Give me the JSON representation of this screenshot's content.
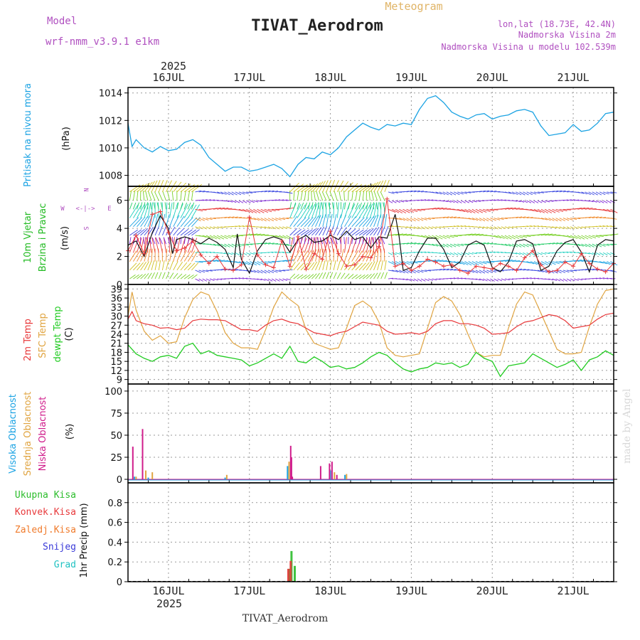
{
  "header": {
    "model_label": "Model",
    "model_name": "wrf-nmm_v3.9.1  e1km",
    "title": "TIVAT_Aerodrom",
    "subtitle": "Meteogram",
    "lonlat": "lon,lat (18.73E, 42.4N)",
    "elevation": "Nadmorska Visina 2m",
    "model_elevation": "Nadmorska Visina u modelu 102.539m",
    "year": "2025",
    "watermark": "made by Angel",
    "footer": "TIVAT_Aerodrom"
  },
  "colors": {
    "pressure": "#1ca3e3",
    "temp2m": "#e8393b",
    "sfc_temp": "#e0a440",
    "dewpoint": "#22cc22",
    "high_cloud": "#1ca3e3",
    "mid_cloud": "#e0a440",
    "low_cloud": "#d01c8b",
    "total_rain": "#2bbd2b",
    "conv_rain": "#e8393b",
    "frz_rain": "#f07a2a",
    "snow": "#3a3ad8",
    "graupel": "#20c2c2",
    "wind_label": "#22bb22",
    "compass": "#b050c0"
  },
  "chart_data": [
    {
      "type": "line",
      "panel": "pressure",
      "ylabel_left": "Pritisak na nivou mora",
      "ylabel_unit": "(hPa)",
      "ylim": [
        1007.2,
        1014.4
      ],
      "yticks": [
        1008,
        1010,
        1012,
        1014
      ],
      "x_range_days": [
        15.5,
        21.5
      ],
      "x_ticks": [
        {
          "day": 16,
          "label": "16JUL"
        },
        {
          "day": 17,
          "label": "17JUL"
        },
        {
          "day": 18,
          "label": "18JUL"
        },
        {
          "day": 19,
          "label": "19JUL"
        },
        {
          "day": 20,
          "label": "20JUL"
        },
        {
          "day": 21,
          "label": "21JUL"
        }
      ],
      "series": [
        {
          "name": "Pritisak na nivou mora",
          "x_days": [
            15.5,
            15.55,
            15.6,
            15.7,
            15.8,
            15.9,
            16.0,
            16.1,
            16.2,
            16.3,
            16.4,
            16.5,
            16.6,
            16.7,
            16.8,
            16.9,
            17.0,
            17.1,
            17.2,
            17.3,
            17.4,
            17.5,
            17.6,
            17.7,
            17.8,
            17.9,
            18.0,
            18.1,
            18.2,
            18.3,
            18.4,
            18.5,
            18.6,
            18.7,
            18.8,
            18.9,
            19.0,
            19.1,
            19.2,
            19.3,
            19.4,
            19.5,
            19.6,
            19.7,
            19.8,
            19.9,
            20.0,
            20.1,
            20.2,
            20.3,
            20.4,
            20.5,
            20.6,
            20.7,
            20.8,
            20.9,
            21.0,
            21.1,
            21.2,
            21.3,
            21.4,
            21.5
          ],
          "values": [
            1011.8,
            1010.1,
            1010.6,
            1010.0,
            1009.7,
            1010.1,
            1009.8,
            1009.9,
            1010.4,
            1010.6,
            1010.2,
            1009.3,
            1008.8,
            1008.3,
            1008.6,
            1008.6,
            1008.3,
            1008.4,
            1008.6,
            1008.8,
            1008.5,
            1007.9,
            1008.8,
            1009.3,
            1009.2,
            1009.7,
            1009.5,
            1010.0,
            1010.8,
            1011.3,
            1011.8,
            1011.5,
            1011.3,
            1011.7,
            1011.6,
            1011.8,
            1011.7,
            1012.8,
            1013.6,
            1013.8,
            1013.3,
            1012.6,
            1012.3,
            1012.1,
            1012.4,
            1012.5,
            1012.1,
            1012.3,
            1012.4,
            1012.7,
            1012.8,
            1012.6,
            1011.6,
            1010.9,
            1011.0,
            1011.1,
            1011.7,
            1011.2,
            1011.3,
            1011.8,
            1012.5,
            1012.6
          ]
        }
      ]
    },
    {
      "type": "line",
      "panel": "wind",
      "ylabel_left": "10m Vjetar Brzina i Pravac",
      "ylabel_unit": "(m/s)",
      "compass": [
        "N",
        "W",
        "E",
        "S"
      ],
      "ylim": [
        0,
        7
      ],
      "yticks": [
        0,
        2,
        4,
        6
      ],
      "series": [
        {
          "name": "wind speed",
          "x_days": [
            15.5,
            15.6,
            15.7,
            15.8,
            15.9,
            16.0,
            16.05,
            16.1,
            16.2,
            16.3,
            16.4,
            16.5,
            16.6,
            16.7,
            16.8,
            16.85,
            16.9,
            17.0,
            17.1,
            17.2,
            17.3,
            17.4,
            17.5,
            17.6,
            17.7,
            17.8,
            17.9,
            18.0,
            18.1,
            18.2,
            18.3,
            18.4,
            18.5,
            18.6,
            18.7,
            18.8,
            18.85,
            18.9,
            19.0,
            19.1,
            19.2,
            19.3,
            19.4,
            19.5,
            19.6,
            19.7,
            19.8,
            19.9,
            20.0,
            20.1,
            20.2,
            20.3,
            20.4,
            20.5,
            20.6,
            20.7,
            20.8,
            20.9,
            21.0,
            21.1,
            21.2,
            21.3,
            21.4,
            21.5
          ],
          "values": [
            2.8,
            3.1,
            2.0,
            3.7,
            4.9,
            4.0,
            2.2,
            3.2,
            3.4,
            3.2,
            2.9,
            3.3,
            3.0,
            2.5,
            1.2,
            3.6,
            1.8,
            0.8,
            2.4,
            3.2,
            3.4,
            3.2,
            2.3,
            3.2,
            3.5,
            3.0,
            3.1,
            3.5,
            3.2,
            3.8,
            3.2,
            3.4,
            2.6,
            3.4,
            3.3,
            5.0,
            3.4,
            1.0,
            1.2,
            2.4,
            3.3,
            3.3,
            2.5,
            1.2,
            1.6,
            2.8,
            3.1,
            2.8,
            1.2,
            0.9,
            1.6,
            3.1,
            3.2,
            2.9,
            1.0,
            1.3,
            2.4,
            3.0,
            3.2,
            2.3,
            0.9,
            2.8,
            3.2,
            3.1
          ]
        },
        {
          "name": "gust markers",
          "x_days": [
            15.5,
            15.6,
            15.7,
            15.8,
            15.9,
            16.0,
            16.1,
            16.2,
            16.3,
            16.4,
            16.5,
            16.6,
            16.7,
            16.8,
            16.9,
            17.0,
            17.1,
            17.2,
            17.3,
            17.4,
            17.5,
            17.6,
            17.7,
            17.8,
            17.9,
            18.0,
            18.1,
            18.2,
            18.3,
            18.4,
            18.5,
            18.6,
            18.7,
            18.8,
            18.9,
            19.0,
            19.1,
            19.2,
            19.3,
            19.4,
            19.5,
            19.6,
            19.7,
            19.8,
            19.9,
            20.0,
            20.1,
            20.2,
            20.3,
            20.4,
            20.5,
            20.6,
            20.7,
            20.8,
            20.9,
            21.0,
            21.1,
            21.2,
            21.3,
            21.4,
            21.5
          ],
          "values": [
            2.4,
            3.5,
            2.2,
            5.0,
            5.2,
            3.7,
            2.4,
            2.6,
            3.1,
            2.1,
            1.5,
            2.0,
            1.1,
            1.0,
            1.4,
            4.8,
            2.1,
            1.4,
            1.2,
            3.1,
            1.3,
            3.4,
            1.1,
            2.2,
            1.8,
            3.8,
            2.2,
            1.3,
            1.4,
            2.0,
            1.9,
            2.7,
            6.1,
            1.3,
            1.5,
            1.0,
            1.3,
            1.8,
            1.6,
            1.3,
            1.4,
            1.0,
            0.8,
            1.3,
            1.2,
            1.1,
            1.5,
            1.3,
            1.0,
            1.9,
            2.4,
            1.4,
            0.9,
            1.0,
            1.6,
            1.3,
            2.2,
            1.5,
            1.1,
            0.9,
            1.5
          ]
        }
      ]
    },
    {
      "type": "line",
      "panel": "temperature",
      "ylabel_left": [
        "2m Temp",
        "SFC Temp",
        "dewpt Temp"
      ],
      "ylabel_unit": "(C)",
      "ylim": [
        7.5,
        40.5
      ],
      "yticks": [
        9,
        12,
        15,
        18,
        21,
        24,
        27,
        30,
        33,
        36,
        39
      ],
      "series": [
        {
          "name": "2m Temp",
          "x_days": [
            15.5,
            15.55,
            15.6,
            15.7,
            15.8,
            15.9,
            16.0,
            16.1,
            16.2,
            16.3,
            16.4,
            16.5,
            16.6,
            16.7,
            16.8,
            16.9,
            17.0,
            17.1,
            17.2,
            17.3,
            17.4,
            17.5,
            17.6,
            17.7,
            17.8,
            17.9,
            18.0,
            18.1,
            18.2,
            18.3,
            18.4,
            18.5,
            18.6,
            18.7,
            18.8,
            18.9,
            19.0,
            19.1,
            19.2,
            19.3,
            19.4,
            19.5,
            19.6,
            19.7,
            19.8,
            19.9,
            20.0,
            20.1,
            20.2,
            20.3,
            20.4,
            20.5,
            20.6,
            20.7,
            20.8,
            20.9,
            21.0,
            21.1,
            21.2,
            21.3,
            21.4,
            21.5
          ],
          "values": [
            29.0,
            31.5,
            28.5,
            27.5,
            27.0,
            26.0,
            26.2,
            25.5,
            26.0,
            28.5,
            29.0,
            28.8,
            28.8,
            28.5,
            27.0,
            25.5,
            25.5,
            25.0,
            27.0,
            28.5,
            29.0,
            28.0,
            27.5,
            26.0,
            24.5,
            24.0,
            23.5,
            24.5,
            25.0,
            26.5,
            28.0,
            27.5,
            27.0,
            25.0,
            24.0,
            24.2,
            24.5,
            24.0,
            25.0,
            27.5,
            28.5,
            28.5,
            27.5,
            27.5,
            27.0,
            26.0,
            24.0,
            24.2,
            24.5,
            26.5,
            28.0,
            28.5,
            29.5,
            30.5,
            30.0,
            28.5,
            26.0,
            26.5,
            27.0,
            29.0,
            30.5,
            31.0
          ]
        },
        {
          "name": "SFC Temp",
          "x_days": [
            15.5,
            15.55,
            15.6,
            15.7,
            15.8,
            15.9,
            16.0,
            16.1,
            16.2,
            16.3,
            16.4,
            16.5,
            16.6,
            16.7,
            16.8,
            16.9,
            17.0,
            17.1,
            17.2,
            17.3,
            17.4,
            17.5,
            17.6,
            17.7,
            17.8,
            17.9,
            18.0,
            18.1,
            18.2,
            18.3,
            18.4,
            18.5,
            18.6,
            18.7,
            18.8,
            18.9,
            19.0,
            19.1,
            19.2,
            19.3,
            19.4,
            19.5,
            19.6,
            19.7,
            19.8,
            19.9,
            20.0,
            20.1,
            20.2,
            20.3,
            20.4,
            20.5,
            20.6,
            20.7,
            20.8,
            20.9,
            21.0,
            21.1,
            21.2,
            21.3,
            21.4,
            21.5
          ],
          "values": [
            30.0,
            38.0,
            32.0,
            25.0,
            22.0,
            23.5,
            21.0,
            21.5,
            29.5,
            35.5,
            38.0,
            37.0,
            31.5,
            24.5,
            21.0,
            19.5,
            19.5,
            19.0,
            25.5,
            33.0,
            38.0,
            35.5,
            33.5,
            25.5,
            21.0,
            20.0,
            19.0,
            19.5,
            26.0,
            33.5,
            35.0,
            33.0,
            28.0,
            19.5,
            17.0,
            16.5,
            17.0,
            17.5,
            26.0,
            34.5,
            36.5,
            35.0,
            30.5,
            24.0,
            18.0,
            16.5,
            17.0,
            17.0,
            26.0,
            34.0,
            38.0,
            37.0,
            31.0,
            25.0,
            19.0,
            17.5,
            17.5,
            18.0,
            26.5,
            34.0,
            38.5,
            39.0
          ]
        },
        {
          "name": "dewpt Temp",
          "x_days": [
            15.5,
            15.6,
            15.7,
            15.8,
            15.9,
            16.0,
            16.1,
            16.2,
            16.3,
            16.4,
            16.5,
            16.6,
            16.7,
            16.8,
            16.9,
            17.0,
            17.1,
            17.2,
            17.3,
            17.4,
            17.5,
            17.6,
            17.7,
            17.8,
            17.9,
            18.0,
            18.1,
            18.2,
            18.3,
            18.4,
            18.5,
            18.6,
            18.7,
            18.8,
            18.9,
            19.0,
            19.1,
            19.2,
            19.3,
            19.4,
            19.5,
            19.6,
            19.7,
            19.8,
            19.9,
            20.0,
            20.1,
            20.2,
            20.3,
            20.4,
            20.5,
            20.6,
            20.7,
            20.8,
            20.9,
            21.0,
            21.1,
            21.2,
            21.3,
            21.4,
            21.5
          ],
          "values": [
            20.5,
            17.5,
            16.0,
            15.0,
            16.5,
            17.0,
            16.0,
            20.0,
            21.0,
            17.5,
            18.5,
            17.0,
            16.5,
            16.0,
            15.5,
            13.5,
            14.5,
            16.0,
            17.5,
            16.0,
            20.0,
            15.0,
            14.5,
            16.5,
            15.0,
            13.0,
            13.5,
            12.5,
            13.0,
            14.5,
            16.5,
            18.0,
            17.0,
            14.5,
            12.5,
            11.5,
            12.5,
            13.0,
            14.5,
            14.0,
            14.5,
            13.0,
            14.0,
            18.0,
            16.0,
            15.0,
            10.0,
            13.5,
            14.0,
            14.5,
            17.5,
            16.0,
            14.5,
            13.0,
            14.0,
            15.5,
            12.0,
            15.5,
            16.5,
            18.5,
            17.0
          ]
        }
      ]
    },
    {
      "type": "bar",
      "panel": "clouds",
      "ylabel_left": [
        "Visoka Oblacnost",
        "Srednja Oblacnost",
        "Niska Oblacnost"
      ],
      "ylabel_unit": "(%)",
      "ylim": [
        -4,
        108
      ],
      "yticks": [
        0,
        25,
        50,
        75,
        100
      ],
      "series": [
        {
          "name": "Visoka Oblacnost",
          "x_days": [
            15.58,
            15.75,
            16.7,
            17.47,
            18.0,
            18.18
          ],
          "values": [
            3,
            2,
            2,
            15,
            10,
            5
          ]
        },
        {
          "name": "Srednja Oblacnost",
          "x_days": [
            15.6,
            15.72,
            15.8,
            16.72,
            17.49,
            18.05,
            18.2
          ],
          "values": [
            3,
            10,
            8,
            5,
            20,
            8,
            6
          ]
        },
        {
          "name": "Niska Oblacnost",
          "x_days": [
            15.56,
            15.68,
            17.51,
            17.52,
            17.53,
            17.88,
            17.99,
            18.02,
            18.08
          ],
          "values": [
            37,
            57,
            38,
            25,
            3,
            15,
            18,
            20,
            5
          ]
        }
      ]
    },
    {
      "type": "bar",
      "panel": "precip",
      "ylabel_left": [
        "Ukupna Kisa",
        "Konvek.Kisa",
        "Zaledj.Kisa",
        "Snijeg",
        "Grad"
      ],
      "ylabel_unit": "1hr Precip (mm)",
      "ylim": [
        0,
        1.0
      ],
      "yticks": [
        0,
        0.2,
        0.4,
        0.6,
        0.8
      ],
      "series": [
        {
          "name": "Ukupna Kisa",
          "x_days": [
            17.49,
            17.52,
            17.56
          ],
          "values": [
            0.13,
            0.31,
            0.16
          ]
        },
        {
          "name": "Konvek.Kisa",
          "x_days": [
            17.48,
            17.51
          ],
          "values": [
            0.13,
            0.21
          ]
        }
      ]
    }
  ]
}
